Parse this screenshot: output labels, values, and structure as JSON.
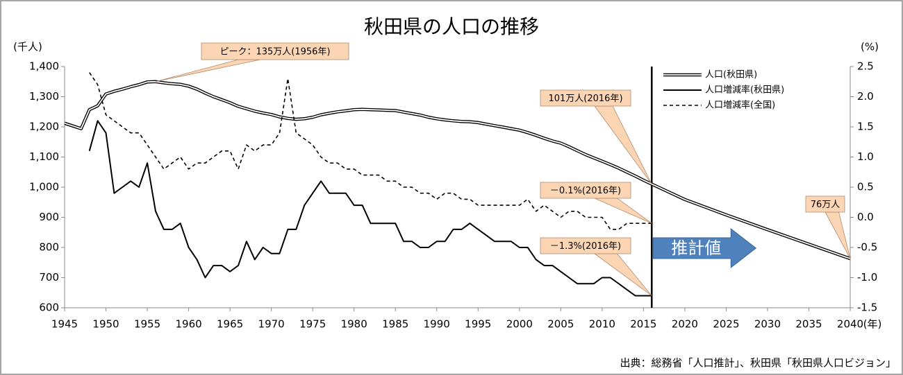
{
  "chart_data": {
    "type": "line",
    "title": "秋田県の人口の推移",
    "y_label": "(千人)",
    "y2_label": "(%)",
    "x_label": "(年)",
    "source": "出典：総務省「人口推計」、秋田県「秋田県人口ビジョン」",
    "xlim": [
      1945,
      2040
    ],
    "xticks": [
      1945,
      1950,
      1955,
      1960,
      1965,
      1970,
      1975,
      1980,
      1985,
      1990,
      1995,
      2000,
      2005,
      2010,
      2015,
      2020,
      2025,
      2030,
      2035,
      2040
    ],
    "ylim": [
      600,
      1400
    ],
    "yticks": [
      600,
      700,
      800,
      900,
      {
        "value": 1000,
        "label": "1,000"
      },
      {
        "value": 1100,
        "label": "1,100"
      },
      {
        "value": 1200,
        "label": "1,200"
      },
      {
        "value": 1300,
        "label": "1,300"
      },
      {
        "value": 1400,
        "label": "1,400"
      }
    ],
    "y2lim": [
      -1.5,
      2.5
    ],
    "y2ticks": [
      -1.5,
      {
        "value": -1,
        "label": "-1.0"
      },
      -0.5,
      {
        "value": 0,
        "label": "0.0"
      },
      0.5,
      {
        "value": 1,
        "label": "1.0"
      },
      1.5,
      {
        "value": 2,
        "label": "2.0"
      },
      2.5
    ],
    "grid": false,
    "legend": "top-right",
    "projection_start": 2016,
    "projection_label": "推計値",
    "series": [
      {
        "name": "人口(秋田県)",
        "color": "#000000",
        "style": "double",
        "x": [
          1945,
          1946,
          1947,
          1948,
          1949,
          1950,
          1951,
          1952,
          1953,
          1954,
          1955,
          1956,
          1957,
          1958,
          1959,
          1960,
          1961,
          1962,
          1963,
          1964,
          1965,
          1966,
          1967,
          1968,
          1969,
          1970,
          1971,
          1972,
          1973,
          1974,
          1975,
          1976,
          1977,
          1978,
          1979,
          1980,
          1981,
          1982,
          1983,
          1984,
          1985,
          1986,
          1987,
          1988,
          1989,
          1990,
          1991,
          1992,
          1993,
          1994,
          1995,
          1996,
          1997,
          1998,
          1999,
          2000,
          2001,
          2002,
          2003,
          2004,
          2005,
          2006,
          2007,
          2008,
          2009,
          2010,
          2011,
          2012,
          2013,
          2014,
          2015,
          2016,
          2020,
          2025,
          2030,
          2035,
          2040
        ],
        "values": [
          1212,
          1203,
          1194,
          1257,
          1270,
          1309,
          1318,
          1325,
          1333,
          1340,
          1349,
          1350,
          1346,
          1343,
          1341,
          1335,
          1325,
          1312,
          1300,
          1290,
          1280,
          1268,
          1260,
          1252,
          1246,
          1241,
          1233,
          1228,
          1225,
          1227,
          1232,
          1240,
          1245,
          1250,
          1253,
          1257,
          1258,
          1257,
          1256,
          1255,
          1254,
          1249,
          1244,
          1239,
          1232,
          1227,
          1223,
          1220,
          1218,
          1217,
          1214,
          1209,
          1204,
          1199,
          1194,
          1189,
          1181,
          1172,
          1162,
          1153,
          1146,
          1134,
          1121,
          1108,
          1097,
          1086,
          1075,
          1063,
          1050,
          1037,
          1023,
          1010,
          959,
          908,
          859,
          811,
          763
        ]
      },
      {
        "name": "人口増減率(秋田県)",
        "color": "#000000",
        "style": "solid",
        "axis": "y2",
        "x": [
          1948,
          1949,
          1950,
          1951,
          1952,
          1953,
          1954,
          1955,
          1956,
          1957,
          1958,
          1959,
          1960,
          1961,
          1962,
          1963,
          1964,
          1965,
          1966,
          1967,
          1968,
          1969,
          1970,
          1971,
          1972,
          1973,
          1974,
          1975,
          1976,
          1977,
          1978,
          1979,
          1980,
          1981,
          1982,
          1983,
          1984,
          1985,
          1986,
          1987,
          1988,
          1989,
          1990,
          1991,
          1992,
          1993,
          1994,
          1995,
          1996,
          1997,
          1998,
          1999,
          2000,
          2001,
          2002,
          2003,
          2004,
          2005,
          2006,
          2007,
          2008,
          2009,
          2010,
          2011,
          2012,
          2013,
          2014,
          2015,
          2016
        ],
        "values": [
          1.1,
          1.6,
          1.4,
          0.4,
          0.5,
          0.6,
          0.5,
          0.9,
          0.1,
          -0.2,
          -0.2,
          -0.1,
          -0.5,
          -0.7,
          -1.0,
          -0.8,
          -0.8,
          -0.9,
          -0.8,
          -0.4,
          -0.7,
          -0.5,
          -0.6,
          -0.6,
          -0.2,
          -0.2,
          0.2,
          0.4,
          0.6,
          0.4,
          0.4,
          0.4,
          0.2,
          0.2,
          -0.1,
          -0.1,
          -0.1,
          -0.1,
          -0.4,
          -0.4,
          -0.5,
          -0.5,
          -0.4,
          -0.4,
          -0.2,
          -0.2,
          -0.1,
          -0.2,
          -0.3,
          -0.4,
          -0.4,
          -0.4,
          -0.5,
          -0.5,
          -0.7,
          -0.8,
          -0.8,
          -0.9,
          -1.0,
          -1.1,
          -1.1,
          -1.1,
          -1.0,
          -1.0,
          -1.1,
          -1.2,
          -1.3,
          -1.3,
          -1.3
        ]
      },
      {
        "name": "人口増減率(全国)",
        "color": "#000000",
        "style": "dashed",
        "axis": "y2",
        "x": [
          1948,
          1949,
          1950,
          1951,
          1952,
          1953,
          1954,
          1955,
          1956,
          1957,
          1958,
          1959,
          1960,
          1961,
          1962,
          1963,
          1964,
          1965,
          1966,
          1967,
          1968,
          1969,
          1970,
          1971,
          1972,
          1973,
          1974,
          1975,
          1976,
          1977,
          1978,
          1979,
          1980,
          1981,
          1982,
          1983,
          1984,
          1985,
          1986,
          1987,
          1988,
          1989,
          1990,
          1991,
          1992,
          1993,
          1994,
          1995,
          1996,
          1997,
          1998,
          1999,
          2000,
          2001,
          2002,
          2003,
          2004,
          2005,
          2006,
          2007,
          2008,
          2009,
          2010,
          2011,
          2012,
          2013,
          2014,
          2015,
          2016
        ],
        "values": [
          2.4,
          2.2,
          1.7,
          1.6,
          1.5,
          1.4,
          1.4,
          1.2,
          1.0,
          0.8,
          0.9,
          1.0,
          0.8,
          0.9,
          0.9,
          1.0,
          1.1,
          1.1,
          0.8,
          1.2,
          1.1,
          1.2,
          1.2,
          1.4,
          2.3,
          1.4,
          1.3,
          1.2,
          1.0,
          0.9,
          0.9,
          0.8,
          0.8,
          0.7,
          0.7,
          0.7,
          0.6,
          0.6,
          0.5,
          0.5,
          0.4,
          0.4,
          0.3,
          0.4,
          0.4,
          0.3,
          0.3,
          0.2,
          0.2,
          0.2,
          0.2,
          0.2,
          0.2,
          0.3,
          0.1,
          0.2,
          0.1,
          0.0,
          0.1,
          0.1,
          0.0,
          0.0,
          0.0,
          -0.2,
          -0.2,
          -0.1,
          -0.1,
          -0.1,
          -0.1
        ]
      }
    ],
    "annotations": [
      {
        "text": "ピーク：135万人(1956年)",
        "x": 1956,
        "y": 1350
      },
      {
        "text": "101万人(2016年)",
        "x": 2016,
        "y": 1010
      },
      {
        "text": "－0.1%(2016年)",
        "x": 2016,
        "y": -0.1,
        "axis": "y2"
      },
      {
        "text": "－1.3%(2016年)",
        "x": 2016,
        "y": -1.3,
        "axis": "y2"
      },
      {
        "text": "76万人",
        "x": 2040,
        "y": 763
      }
    ]
  }
}
